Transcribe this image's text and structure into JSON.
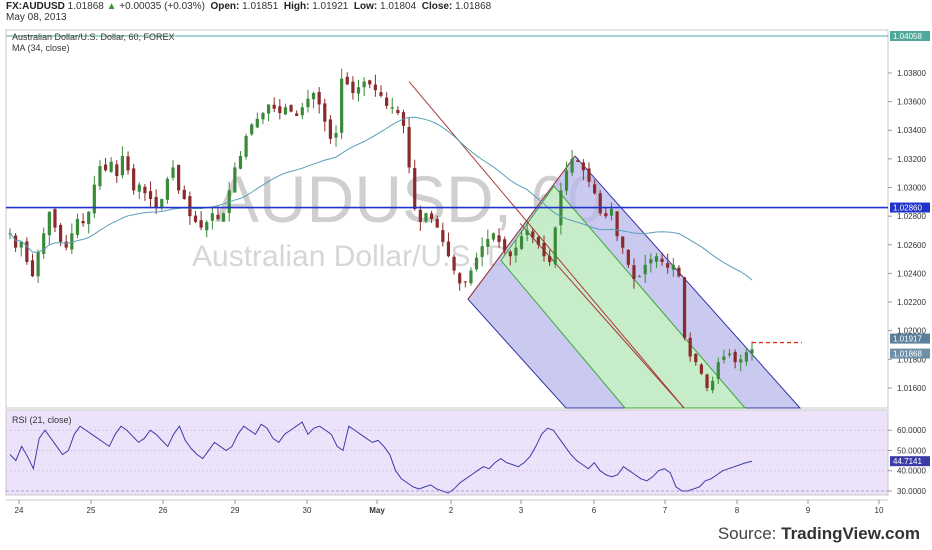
{
  "header": {
    "symbol": "FX:AUDUSD",
    "last": "1.01868",
    "arrow": "▲",
    "change": "+0.00035 (+0.03%)",
    "open_label": "Open:",
    "open": "1.01851",
    "high_label": "High:",
    "high": "1.01921",
    "low_label": "Low:",
    "low": "1.01804",
    "close_label": "Close:",
    "close": "1.01868",
    "date": "May 08, 2013"
  },
  "watermark": {
    "symbol": "AUDUSD, 60",
    "name": "Australian Dollar/U.S. Dollar"
  },
  "source": {
    "prefix": "Source: ",
    "brand": "TradingView.com"
  },
  "chart_data": [
    {
      "type": "candlestick",
      "title": "Australian Dollar/U.S. Dollar, 60, FOREX",
      "indicator_label": "MA (34, close)",
      "ylim": [
        1.0146,
        1.041
      ],
      "yticks": [
        "1.03800",
        "1.03600",
        "1.03400",
        "1.03200",
        "1.03000",
        "1.02800",
        "1.02600",
        "1.02400",
        "1.02200",
        "1.02000",
        "1.01800",
        "1.01600"
      ],
      "price_labels": [
        {
          "value": 1.04058,
          "label": "1.04058",
          "color": "#4fa89c"
        },
        {
          "value": 1.0286,
          "label": "1.02860",
          "color": "#2233cc"
        },
        {
          "value": 1.01917,
          "label": "1.01917",
          "color": "#5a7f9a"
        },
        {
          "value": 1.01868,
          "label": "1.01868",
          "color": "#6e8fa8"
        }
      ],
      "horizontal_lines": [
        1.04058,
        1.0286
      ],
      "x_ticks": [
        "24",
        "25",
        "26",
        "29",
        "30",
        "May",
        "2",
        "3",
        "6",
        "7",
        "8",
        "9",
        "10"
      ],
      "close_path": [
        1.0268,
        1.0258,
        1.0262,
        1.0248,
        1.0238,
        1.0255,
        1.0268,
        1.0283,
        1.0272,
        1.0262,
        1.0258,
        1.0268,
        1.0278,
        1.0275,
        1.0283,
        1.0302,
        1.0315,
        1.0312,
        1.0318,
        1.0308,
        1.0322,
        1.0312,
        1.0298,
        1.0302,
        1.0296,
        1.0292,
        1.0286,
        1.0292,
        1.0306,
        1.0314,
        1.0298,
        1.0292,
        1.028,
        1.0276,
        1.0272,
        1.0276,
        1.0282,
        1.0278,
        1.0282,
        1.0298,
        1.0314,
        1.0322,
        1.0336,
        1.0344,
        1.0348,
        1.0352,
        1.0358,
        1.0355,
        1.0352,
        1.0356,
        1.0353,
        1.035,
        1.0356,
        1.0362,
        1.0366,
        1.0358,
        1.0346,
        1.0334,
        1.0338,
        1.0376,
        1.0372,
        1.0366,
        1.037,
        1.0374,
        1.0372,
        1.0368,
        1.0364,
        1.0357,
        1.0356,
        1.0352,
        1.0343,
        1.0314,
        1.0285,
        1.0276,
        1.0282,
        1.0278,
        1.0272,
        1.0262,
        1.0252,
        1.0242,
        1.0233,
        1.0234,
        1.0242,
        1.0251,
        1.0259,
        1.0264,
        1.0268,
        1.0262,
        1.0256,
        1.0252,
        1.0258,
        1.0266,
        1.027,
        1.0265,
        1.026,
        1.0252,
        1.0248,
        1.0272,
        1.0298,
        1.0312,
        1.032,
        1.0318,
        1.0312,
        1.0304,
        1.0296,
        1.0282,
        1.028,
        1.0285,
        1.0266,
        1.0258,
        1.0246,
        1.0236,
        1.0238,
        1.0246,
        1.025,
        1.0252,
        1.0248,
        1.0244,
        1.0246,
        1.0238,
        1.0195,
        1.0182,
        1.0178,
        1.017,
        1.016,
        1.0165,
        1.0178,
        1.0182,
        1.0184,
        1.0178,
        1.018,
        1.0185,
        1.0187
      ],
      "pitchfork": {
        "median": [
          [
            1.022,
            1.0425
          ],
          [
            1.0384,
            1.0124
          ]
        ],
        "upper_band": [
          [
            1.0322,
            1.032
          ],
          [
            1.0136,
            1.012
          ]
        ],
        "lower_band": [
          [
            1.0225,
            1.0228
          ],
          [
            1.014,
            1.0116
          ]
        ]
      }
    },
    {
      "type": "line",
      "title": "RSI (21, close)",
      "ylim": [
        28.0,
        70.0
      ],
      "yticks": [
        "60.0000",
        "50.0000",
        "40.0000",
        "30.0000"
      ],
      "last_label": "44.7141",
      "last_value": 44.7141,
      "band": [
        30.0,
        70.0
      ],
      "values": [
        48,
        45,
        52,
        47,
        41,
        56,
        60,
        56,
        52,
        48,
        50,
        58,
        62,
        60,
        58,
        56,
        54,
        52,
        58,
        62,
        60,
        57,
        54,
        56,
        60,
        58,
        55,
        52,
        58,
        62,
        55,
        51,
        48,
        46,
        50,
        54,
        52,
        50,
        52,
        58,
        62,
        60,
        58,
        63,
        61,
        56,
        54,
        58,
        60,
        62,
        64,
        58,
        61,
        62,
        60,
        58,
        52,
        50,
        62,
        60,
        58,
        56,
        54,
        55,
        52,
        48,
        40,
        36,
        34,
        32,
        31,
        32,
        33,
        31,
        30,
        29,
        31,
        34,
        36,
        38,
        40,
        42,
        41,
        44,
        46,
        44,
        43,
        42,
        44,
        47,
        52,
        58,
        61,
        60,
        56,
        52,
        48,
        45,
        43,
        41,
        44,
        40,
        38,
        37,
        38,
        42,
        40,
        38,
        36,
        35,
        37,
        40,
        41,
        39,
        32,
        30,
        30,
        31,
        32,
        35,
        36,
        38,
        40,
        41,
        42,
        43,
        44,
        44.7
      ]
    }
  ]
}
